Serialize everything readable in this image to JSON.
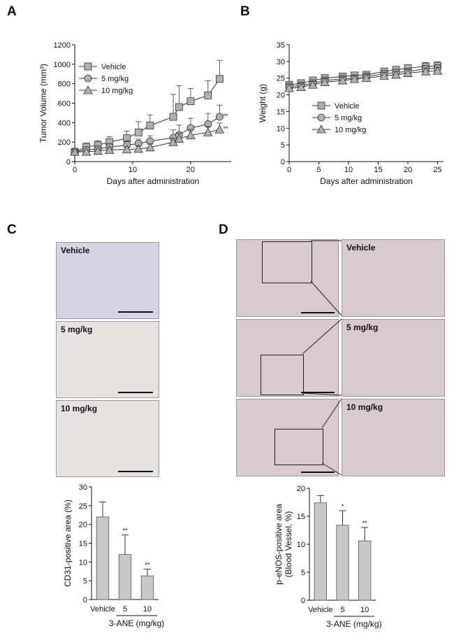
{
  "panels": {
    "a": "A",
    "b": "B",
    "c": "C",
    "d": "D"
  },
  "chart_data": [
    {
      "id": "A",
      "type": "line",
      "xlabel": "Days after administration",
      "ylabel": "Tumor Volume (mm³)",
      "xlim": [
        0,
        27
      ],
      "ylim": [
        0,
        1200
      ],
      "xticks": [
        0,
        10,
        20
      ],
      "yticks": [
        0,
        200,
        400,
        600,
        800,
        1000,
        1200
      ],
      "legend": "top-left",
      "series": [
        {
          "name": "Vehicle",
          "marker": "square",
          "x": [
            0,
            2,
            4,
            6,
            9,
            11,
            13,
            17,
            18,
            20,
            23,
            25
          ],
          "y": [
            100,
            150,
            170,
            200,
            240,
            300,
            370,
            460,
            560,
            620,
            680,
            850
          ],
          "err": [
            30,
            40,
            45,
            55,
            75,
            110,
            110,
            230,
            220,
            130,
            150,
            190
          ]
        },
        {
          "name": "5 mg/kg",
          "marker": "circle",
          "x": [
            0,
            2,
            4,
            6,
            9,
            11,
            13,
            17,
            18,
            20,
            23,
            25
          ],
          "y": [
            100,
            120,
            130,
            150,
            170,
            185,
            210,
            245,
            275,
            345,
            385,
            460
          ],
          "err": [
            20,
            25,
            30,
            35,
            45,
            45,
            55,
            80,
            100,
            100,
            110,
            120
          ]
        },
        {
          "name": "10 mg/kg",
          "marker": "triangle",
          "x": [
            0,
            2,
            4,
            6,
            9,
            11,
            13,
            17,
            18,
            20,
            23,
            25
          ],
          "y": [
            100,
            100,
            110,
            120,
            125,
            130,
            145,
            200,
            235,
            270,
            300,
            330
          ],
          "err": [
            20,
            20,
            20,
            25,
            25,
            30,
            35,
            40,
            55,
            60,
            60,
            65
          ]
        }
      ],
      "annotations": [
        {
          "series": 1,
          "text": "**"
        },
        {
          "series": 2,
          "text": "**"
        }
      ]
    },
    {
      "id": "B",
      "type": "line",
      "xlabel": "Days after administration",
      "ylabel": "Weight (g)",
      "xlim": [
        0,
        26
      ],
      "ylim": [
        0,
        35
      ],
      "xticks": [
        0,
        5,
        10,
        15,
        20,
        25
      ],
      "yticks": [
        0,
        5,
        10,
        15,
        20,
        25,
        30,
        35
      ],
      "legend": "bottom-left",
      "series": [
        {
          "name": "Vehicle",
          "marker": "square",
          "x": [
            0,
            2,
            4,
            6,
            9,
            11,
            13,
            16,
            18,
            20,
            23,
            25
          ],
          "y": [
            23,
            23.5,
            24.3,
            25,
            25.5,
            25.8,
            26,
            27,
            27.5,
            28,
            28.5,
            28.7
          ],
          "err": [
            1,
            1,
            1,
            1,
            1,
            1,
            1,
            1,
            1,
            1,
            1.2,
            1.2
          ]
        },
        {
          "name": "5 mg/kg",
          "marker": "circle",
          "x": [
            0,
            2,
            4,
            6,
            9,
            11,
            13,
            16,
            18,
            20,
            23,
            25
          ],
          "y": [
            22.5,
            22.8,
            23.5,
            24.3,
            24.8,
            25,
            25.5,
            26.3,
            26.7,
            27,
            27.8,
            28
          ],
          "err": [
            1,
            1,
            1,
            1,
            1,
            1,
            1,
            1,
            1,
            1,
            1,
            1
          ]
        },
        {
          "name": "10 mg/kg",
          "marker": "triangle",
          "x": [
            0,
            2,
            4,
            6,
            9,
            11,
            13,
            16,
            18,
            20,
            23,
            25
          ],
          "y": [
            22,
            22.3,
            23,
            23.8,
            24.3,
            24.7,
            25,
            25.7,
            26,
            26.5,
            27,
            27.2
          ],
          "err": [
            1,
            1,
            1,
            1,
            1,
            1,
            1,
            1,
            1,
            1,
            1,
            1
          ]
        }
      ]
    },
    {
      "id": "C",
      "type": "bar",
      "ylabel": "CD31-positive area (%)",
      "xlabel": "3-ANE (mg/kg)",
      "categories": [
        "Vehicle",
        "5",
        "10"
      ],
      "values": [
        22,
        12,
        6.3
      ],
      "err": [
        4,
        5.2,
        1.8
      ],
      "significance": [
        "",
        "**",
        "**"
      ],
      "ylim": [
        0,
        30
      ],
      "yticks": [
        0,
        5,
        10,
        15,
        20,
        25,
        30
      ]
    },
    {
      "id": "D",
      "type": "bar",
      "ylabel": "p-eNOS-positive area",
      "ylabel2": "(Blood Vessel, %)",
      "xlabel": "3-ANE (mg/kg)",
      "categories": [
        "Vehicle",
        "5",
        "10"
      ],
      "values": [
        17.4,
        13.4,
        10.6
      ],
      "err": [
        1.3,
        2.6,
        2.4
      ],
      "significance": [
        "",
        "*",
        "**"
      ],
      "ylim": [
        0,
        20
      ],
      "yticks": [
        0,
        5,
        10,
        15,
        20
      ]
    }
  ],
  "histology": {
    "c_labels": [
      "Vehicle",
      "5 mg/kg",
      "10 mg/kg"
    ],
    "d_labels": [
      "Vehicle",
      "5 mg/kg",
      "10 mg/kg"
    ]
  },
  "colors": {
    "bar": "#c8c8c8",
    "marker": "#b0b0b0",
    "line": "#333333"
  }
}
